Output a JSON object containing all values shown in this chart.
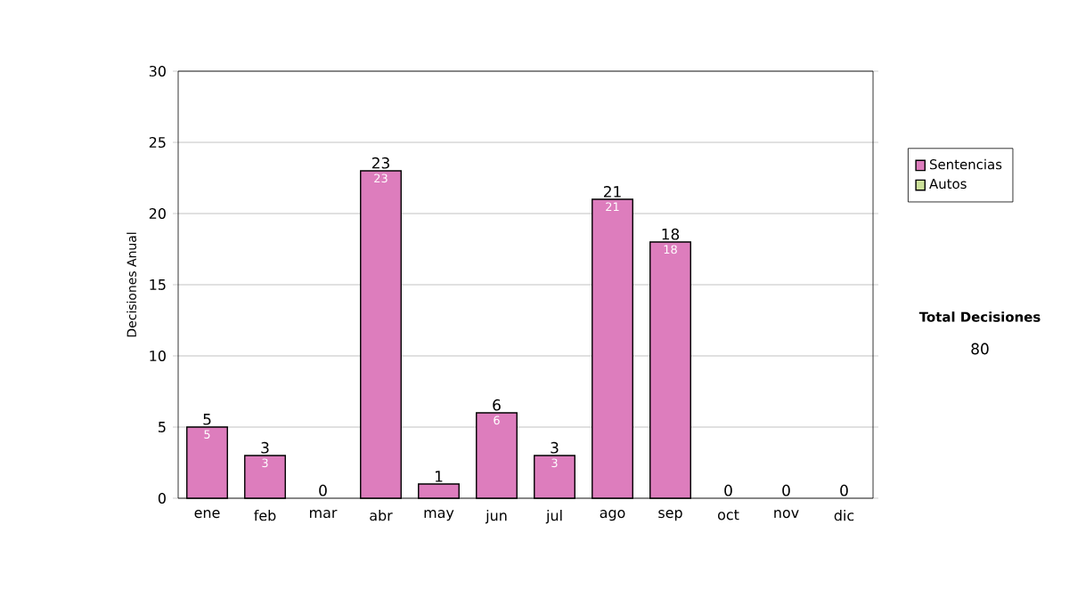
{
  "chart_data": {
    "type": "bar",
    "stacked": true,
    "ylabel": "Decisiones Anual",
    "categories": [
      "ene",
      "feb",
      "mar",
      "abr",
      "may",
      "jun",
      "jul",
      "ago",
      "sep",
      "oct",
      "nov",
      "dic"
    ],
    "series": [
      {
        "name": "Sentencias",
        "color": "#dd7dbd",
        "values": [
          5,
          3,
          0,
          23,
          1,
          6,
          3,
          21,
          18,
          0,
          0,
          0
        ],
        "value_labels": [
          "5",
          "3",
          null,
          "23",
          null,
          "6",
          "3",
          "21",
          "18",
          null,
          null,
          null
        ]
      },
      {
        "name": "Autos",
        "color": "#cce199",
        "values": [
          0,
          0,
          0,
          0,
          0,
          0,
          0,
          0,
          0,
          0,
          0,
          0
        ]
      }
    ],
    "totals": [
      "5",
      "3",
      "0",
      "23",
      "1",
      "6",
      "3",
      "21",
      "18",
      "0",
      "0",
      "0"
    ],
    "ylim": [
      0,
      30
    ],
    "yticks": [
      0,
      5,
      10,
      15,
      20,
      25,
      30
    ],
    "grid": "y",
    "legend": "right",
    "annotations": [
      "Total Decisiones",
      "80"
    ]
  }
}
